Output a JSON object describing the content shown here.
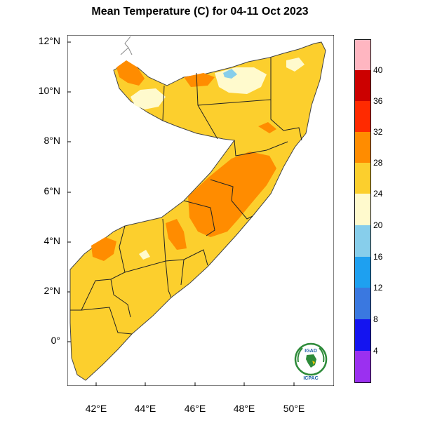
{
  "title": "Mean Temperature (C) for 04-11 Oct 2023",
  "y_ticks": [
    "12°N",
    "10°N",
    "8°N",
    "6°N",
    "4°N",
    "2°N",
    "0°"
  ],
  "x_ticks": [
    "42°E",
    "44°E",
    "46°E",
    "48°E",
    "50°E"
  ],
  "colorbar": {
    "labels": [
      "40",
      "36",
      "32",
      "28",
      "24",
      "20",
      "16",
      "12",
      "8",
      "4"
    ],
    "colors": [
      "#ffb6c1",
      "#cc0000",
      "#ff2a00",
      "#ff8c00",
      "#fccf2d",
      "#fffacd",
      "#87ceeb",
      "#1ea0f0",
      "#3a78e0",
      "#1414f0",
      "#9b30f0"
    ]
  },
  "logo": {
    "top": "IGAD",
    "bottom": "ICPAC"
  },
  "map_colors": {
    "land_base": "#fccf2d",
    "warm": "#ff8c00",
    "cool": "#fffacd",
    "cold": "#87ceeb",
    "border": "#222222"
  }
}
